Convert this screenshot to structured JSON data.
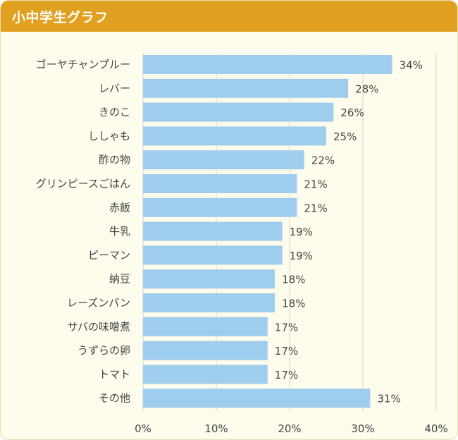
{
  "header": {
    "title": "小中学生グラフ"
  },
  "colors": {
    "header_bg": "#e1a01f",
    "panel_bg": "#fefcec",
    "bar": "#9fcdee",
    "grid": "#d9d5c0"
  },
  "chart_data": {
    "type": "bar",
    "orientation": "horizontal",
    "categories": [
      "ゴーヤチャンプルー",
      "レバー",
      "きのこ",
      "ししゃも",
      "酢の物",
      "グリンピースごはん",
      "赤飯",
      "牛乳",
      "ピーマン",
      "納豆",
      "レーズンパン",
      "サバの味噌煮",
      "うずらの卵",
      "トマト",
      "その他"
    ],
    "values": [
      34,
      28,
      26,
      25,
      22,
      21,
      21,
      19,
      19,
      18,
      18,
      17,
      17,
      17,
      31
    ],
    "value_labels": [
      "34%",
      "28%",
      "26%",
      "25%",
      "22%",
      "21%",
      "21%",
      "19%",
      "19%",
      "18%",
      "18%",
      "17%",
      "17%",
      "17%",
      "31%"
    ],
    "x_ticks": [
      "0%",
      "10%",
      "20%",
      "30%",
      "40%"
    ],
    "xlim": [
      0,
      40
    ],
    "grid": true,
    "title": "",
    "xlabel": "",
    "ylabel": ""
  }
}
